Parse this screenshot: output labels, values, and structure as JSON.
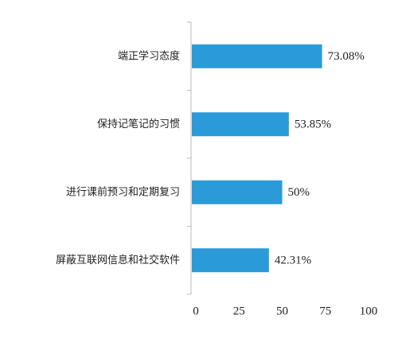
{
  "chart_data": {
    "type": "bar",
    "orientation": "horizontal",
    "categories": [
      "端正学习态度",
      "保持记笔记的习惯",
      "进行课前预习和定期复习",
      "屏蔽互联网信息和社交软件"
    ],
    "values": [
      73.08,
      53.85,
      50,
      42.31
    ],
    "value_labels": [
      "73.08%",
      "53.85%",
      "50%",
      "42.31%"
    ],
    "color": "#2b9ad8",
    "xlim": [
      0,
      100
    ],
    "xticks": [
      0,
      25,
      50,
      75,
      100
    ],
    "grid": false
  }
}
